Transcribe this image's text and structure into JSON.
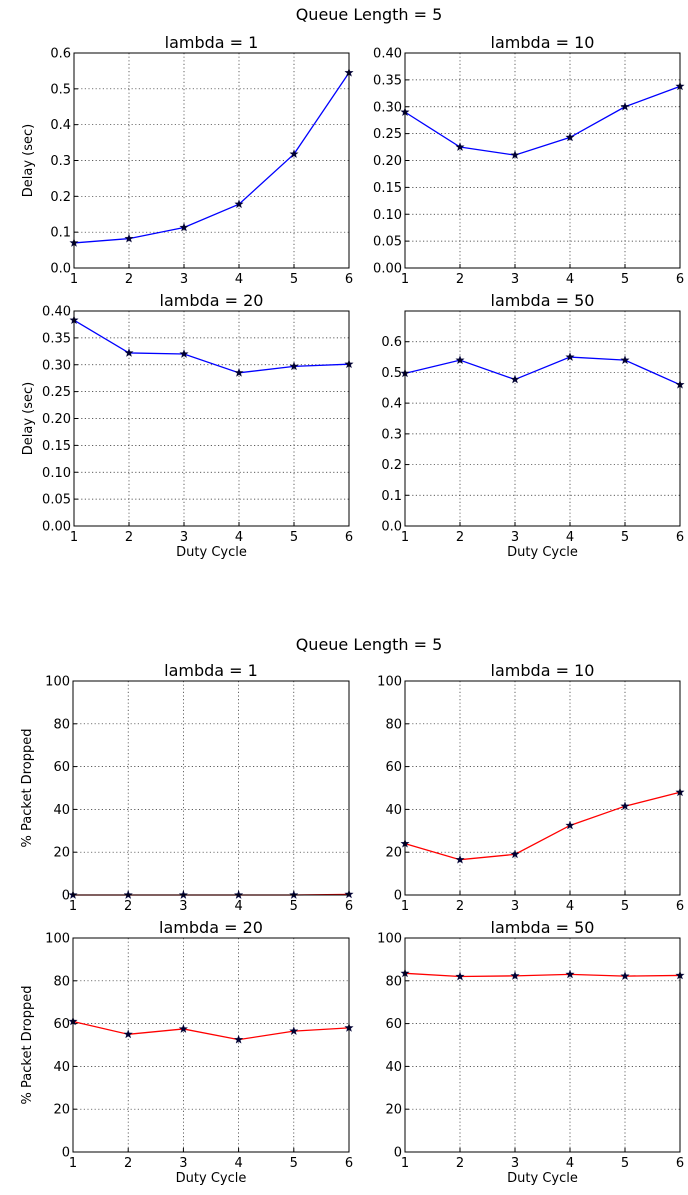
{
  "figures": [
    {
      "suptitle": "Queue Length = 5"
    },
    {
      "suptitle": "Queue Length = 5"
    }
  ],
  "chart_data": [
    {
      "type": "line",
      "title": "lambda = 1",
      "xlabel": "",
      "ylabel": "Delay (sec)",
      "x": [
        1,
        2,
        3,
        4,
        5,
        6
      ],
      "xlim": [
        1,
        6
      ],
      "xticks": [
        "1",
        "2",
        "3",
        "4",
        "5",
        "6"
      ],
      "ylim": [
        0,
        0.6
      ],
      "yticks": [
        "0.0",
        "0.1",
        "0.2",
        "0.3",
        "0.4",
        "0.5",
        "0.6"
      ],
      "grid": true,
      "series": [
        {
          "values": [
            0.07,
            0.082,
            0.113,
            0.178,
            0.318,
            0.545
          ],
          "color": "#0000ff",
          "marker": "star"
        }
      ]
    },
    {
      "type": "line",
      "title": "lambda = 10",
      "xlabel": "",
      "ylabel": "",
      "x": [
        1,
        2,
        3,
        4,
        5,
        6
      ],
      "xlim": [
        1,
        6
      ],
      "xticks": [
        "1",
        "2",
        "3",
        "4",
        "5",
        "6"
      ],
      "ylim": [
        0,
        0.4
      ],
      "yticks": [
        "0.00",
        "0.05",
        "0.10",
        "0.15",
        "0.20",
        "0.25",
        "0.30",
        "0.35",
        "0.40"
      ],
      "grid": true,
      "series": [
        {
          "values": [
            0.29,
            0.225,
            0.21,
            0.243,
            0.3,
            0.338
          ],
          "color": "#0000ff",
          "marker": "star"
        }
      ]
    },
    {
      "type": "line",
      "title": "lambda = 20",
      "xlabel": "Duty Cycle",
      "ylabel": "Delay (sec)",
      "x": [
        1,
        2,
        3,
        4,
        5,
        6
      ],
      "xlim": [
        1,
        6
      ],
      "xticks": [
        "1",
        "2",
        "3",
        "4",
        "5",
        "6"
      ],
      "ylim": [
        0,
        0.4
      ],
      "yticks": [
        "0.00",
        "0.05",
        "0.10",
        "0.15",
        "0.20",
        "0.25",
        "0.30",
        "0.35",
        "0.40"
      ],
      "grid": true,
      "series": [
        {
          "values": [
            0.383,
            0.322,
            0.32,
            0.285,
            0.297,
            0.301
          ],
          "color": "#0000ff",
          "marker": "star"
        }
      ]
    },
    {
      "type": "line",
      "title": "lambda = 50",
      "xlabel": "Duty Cycle",
      "ylabel": "",
      "x": [
        1,
        2,
        3,
        4,
        5,
        6
      ],
      "xlim": [
        1,
        6
      ],
      "xticks": [
        "1",
        "2",
        "3",
        "4",
        "5",
        "6"
      ],
      "ylim": [
        0,
        0.7
      ],
      "yticks": [
        "0.0",
        "0.1",
        "0.2",
        "0.3",
        "0.4",
        "0.5",
        "0.6"
      ],
      "grid": true,
      "series": [
        {
          "values": [
            0.497,
            0.54,
            0.477,
            0.55,
            0.54,
            0.46
          ],
          "color": "#0000ff",
          "marker": "star"
        }
      ]
    },
    {
      "type": "line",
      "title": "lambda = 1",
      "xlabel": "",
      "ylabel": "% Packet Dropped",
      "x": [
        1,
        2,
        3,
        4,
        5,
        6
      ],
      "xlim": [
        1,
        6
      ],
      "xticks": [
        "1",
        "2",
        "3",
        "4",
        "5",
        "6"
      ],
      "ylim": [
        0,
        100
      ],
      "yticks": [
        "0",
        "20",
        "40",
        "60",
        "80",
        "100"
      ],
      "grid": true,
      "series": [
        {
          "values": [
            0,
            0,
            0,
            0,
            0,
            0.3
          ],
          "color": "#ff0000",
          "marker": "star"
        }
      ]
    },
    {
      "type": "line",
      "title": "lambda = 10",
      "xlabel": "",
      "ylabel": "",
      "x": [
        1,
        2,
        3,
        4,
        5,
        6
      ],
      "xlim": [
        1,
        6
      ],
      "xticks": [
        "1",
        "2",
        "3",
        "4",
        "5",
        "6"
      ],
      "ylim": [
        0,
        100
      ],
      "yticks": [
        "0",
        "20",
        "40",
        "60",
        "80",
        "100"
      ],
      "grid": true,
      "series": [
        {
          "values": [
            24,
            16.5,
            19,
            32.5,
            41.5,
            48
          ],
          "color": "#ff0000",
          "marker": "star"
        }
      ]
    },
    {
      "type": "line",
      "title": "lambda = 20",
      "xlabel": "Duty Cycle",
      "ylabel": "% Packet Dropped",
      "x": [
        1,
        2,
        3,
        4,
        5,
        6
      ],
      "xlim": [
        1,
        6
      ],
      "xticks": [
        "1",
        "2",
        "3",
        "4",
        "5",
        "6"
      ],
      "ylim": [
        0,
        100
      ],
      "yticks": [
        "0",
        "20",
        "40",
        "60",
        "80",
        "100"
      ],
      "grid": true,
      "series": [
        {
          "values": [
            61,
            55,
            57.5,
            52.5,
            56.5,
            58
          ],
          "color": "#ff0000",
          "marker": "star"
        }
      ]
    },
    {
      "type": "line",
      "title": "lambda = 50",
      "xlabel": "Duty Cycle",
      "ylabel": "",
      "x": [
        1,
        2,
        3,
        4,
        5,
        6
      ],
      "xlim": [
        1,
        6
      ],
      "xticks": [
        "1",
        "2",
        "3",
        "4",
        "5",
        "6"
      ],
      "ylim": [
        0,
        100
      ],
      "yticks": [
        "0",
        "20",
        "40",
        "60",
        "80",
        "100"
      ],
      "grid": true,
      "series": [
        {
          "values": [
            83.5,
            82,
            82.3,
            83,
            82.2,
            82.5
          ],
          "color": "#ff0000",
          "marker": "star"
        }
      ]
    }
  ]
}
